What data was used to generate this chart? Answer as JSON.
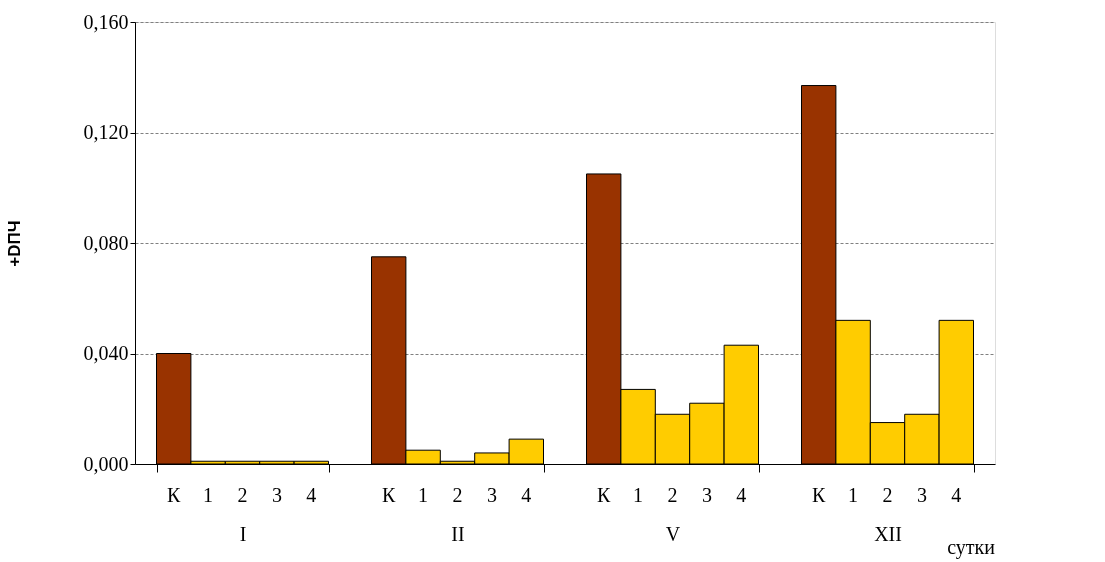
{
  "chart_data": {
    "type": "bar",
    "ylabel": "+DПЧ",
    "xlabel": "сутки",
    "categories": [
      "I",
      "II",
      "V",
      "XII"
    ],
    "series": [
      {
        "name": "К",
        "color": "#993300",
        "values": [
          0.04,
          0.075,
          0.105,
          0.137
        ]
      },
      {
        "name": "1",
        "color": "#ffcc00",
        "values": [
          0.001,
          0.005,
          0.027,
          0.052
        ]
      },
      {
        "name": "2",
        "color": "#ffcc00",
        "values": [
          0.001,
          0.001,
          0.018,
          0.015
        ]
      },
      {
        "name": "3",
        "color": "#ffcc00",
        "values": [
          0.001,
          0.004,
          0.022,
          0.018
        ]
      },
      {
        "name": "4",
        "color": "#ffcc00",
        "values": [
          0.001,
          0.009,
          0.043,
          0.052
        ]
      }
    ],
    "ylim": [
      0,
      0.16
    ],
    "yticks": [
      {
        "value": 0,
        "label": "0,000"
      },
      {
        "value": 0.04,
        "label": "0,040"
      },
      {
        "value": 0.08,
        "label": "0,080"
      },
      {
        "value": 0.12,
        "label": "0,120"
      },
      {
        "value": 0.16,
        "label": "0,160"
      }
    ],
    "grid": "y",
    "legend": "bottom"
  }
}
